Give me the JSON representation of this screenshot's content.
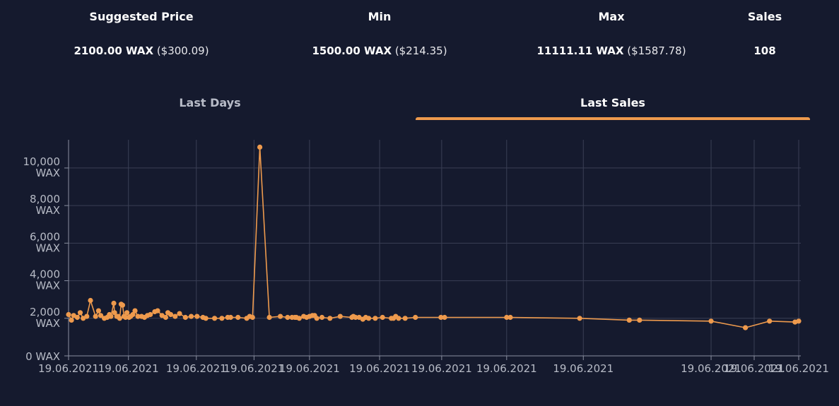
{
  "stats": {
    "suggested": {
      "header": "Suggested Price",
      "wax": "2100.00 WAX",
      "usd": "($300.09)"
    },
    "min": {
      "header": "Min",
      "wax": "1500.00 WAX",
      "usd": "($214.35)"
    },
    "max": {
      "header": "Max",
      "wax": "11111.11 WAX",
      "usd": "($1587.78)"
    },
    "sales": {
      "header": "Sales",
      "value": "108"
    }
  },
  "tabs": [
    {
      "label": "Last Days",
      "active": false
    },
    {
      "label": "Last Sales",
      "active": true
    }
  ],
  "colors": {
    "background": "#151a2e",
    "accent": "#ee9a4d",
    "grid": "#3a3f55"
  },
  "chart_data": {
    "type": "line",
    "ylim": [
      0,
      11500
    ],
    "y_ticks": [
      {
        "value": 0,
        "line1": "0 WAX",
        "line2": ""
      },
      {
        "value": 2000,
        "line1": "2,000",
        "line2": "WAX"
      },
      {
        "value": 4000,
        "line1": "4,000",
        "line2": "WAX"
      },
      {
        "value": 6000,
        "line1": "6,000",
        "line2": "WAX"
      },
      {
        "value": 8000,
        "line1": "8,000",
        "line2": "WAX"
      },
      {
        "value": 10000,
        "line1": "10,000",
        "line2": "WAX"
      }
    ],
    "x_tick_labels": [
      "19.06.2021",
      "19.06.2021",
      "19.06.2021",
      "19.06.2021",
      "19.06.2021",
      "19.06.2021",
      "19.06.2021",
      "19.06.2021",
      "19.06.2021",
      "19.06.2021",
      "19.06.2021",
      "19.06.2021"
    ],
    "x_tick_positions": [
      0,
      0.082,
      0.175,
      0.254,
      0.33,
      0.426,
      0.511,
      0.6,
      0.705,
      0.88,
      0.939,
      1.0
    ],
    "series": [
      {
        "x": [
          0,
          0.004,
          0.007,
          0.012,
          0.016,
          0.02,
          0.025,
          0.03,
          0.037,
          0.041,
          0.044,
          0.049,
          0.053,
          0.056,
          0.058,
          0.062,
          0.063,
          0.066,
          0.068,
          0.07,
          0.072,
          0.074,
          0.076,
          0.078,
          0.08,
          0.083,
          0.085,
          0.088,
          0.091,
          0.095,
          0.1,
          0.104,
          0.108,
          0.112,
          0.118,
          0.122,
          0.128,
          0.133,
          0.136,
          0.14,
          0.146,
          0.152,
          0.16,
          0.168,
          0.176,
          0.184,
          0.188,
          0.2,
          0.21,
          0.218,
          0.222,
          0.232,
          0.244,
          0.248,
          0.252,
          0.262,
          0.275,
          0.29,
          0.3,
          0.306,
          0.31,
          0.312,
          0.316,
          0.322,
          0.326,
          0.33,
          0.334,
          0.337,
          0.34,
          0.347,
          0.358,
          0.372,
          0.388,
          0.39,
          0.393,
          0.398,
          0.403,
          0.407,
          0.411,
          0.42,
          0.43,
          0.442,
          0.445,
          0.448,
          0.452,
          0.461,
          0.475,
          0.51,
          0.515,
          0.6,
          0.605,
          0.7,
          0.768,
          0.782,
          0.88,
          0.927,
          0.96,
          0.995,
          1.0
        ],
        "y": [
          2200,
          1900,
          2150,
          2050,
          2300,
          2000,
          2100,
          2950,
          2100,
          2400,
          2150,
          2000,
          2050,
          2200,
          2100,
          2800,
          2300,
          2100,
          2100,
          2000,
          2750,
          2700,
          2100,
          2050,
          2300,
          2050,
          2100,
          2200,
          2400,
          2100,
          2100,
          2050,
          2150,
          2200,
          2350,
          2400,
          2150,
          2050,
          2300,
          2200,
          2100,
          2250,
          2050,
          2100,
          2100,
          2050,
          2000,
          2000,
          2000,
          2050,
          2050,
          2050,
          2000,
          2100,
          2050,
          11111,
          2050,
          2100,
          2050,
          2050,
          2050,
          2050,
          2000,
          2100,
          2050,
          2100,
          2150,
          2150,
          2000,
          2050,
          2000,
          2100,
          2050,
          2100,
          2050,
          2050,
          1950,
          2050,
          2000,
          2000,
          2050,
          2000,
          2000,
          2100,
          2000,
          2000,
          2050,
          2050,
          2050,
          2050,
          2050,
          2000,
          1900,
          1900,
          1850,
          1500,
          1850,
          1800,
          1850
        ]
      }
    ]
  }
}
